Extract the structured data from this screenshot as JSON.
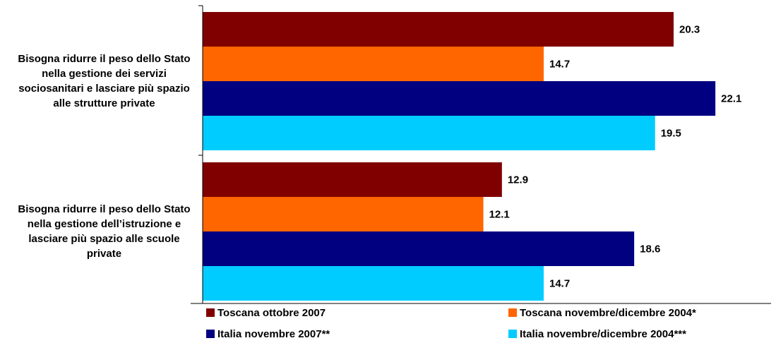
{
  "chart_data": {
    "type": "barh",
    "categories": [
      "Bisogna ridurre il peso dello Stato nella gestione dei servizi sociosanitari e lasciare più spazio alle strutture private",
      "Bisogna ridurre il peso dello Stato nella gestione dell’istruzione e lasciare più spazio alle scuole private"
    ],
    "series": [
      {
        "name": "Toscana ottobre 2007",
        "color": "#800000",
        "values": [
          20.3,
          12.9
        ]
      },
      {
        "name": "Toscana novembre/dicembre 2004*",
        "color": "#ff6600",
        "values": [
          14.7,
          12.1
        ]
      },
      {
        "name": "Italia novembre 2007**",
        "color": "#000080",
        "values": [
          22.1,
          18.6
        ]
      },
      {
        "name": "Italia novembre/dicembre 2004***",
        "color": "#00ccff",
        "values": [
          19.5,
          14.7
        ]
      }
    ],
    "xlim": [
      0,
      24.5
    ]
  }
}
